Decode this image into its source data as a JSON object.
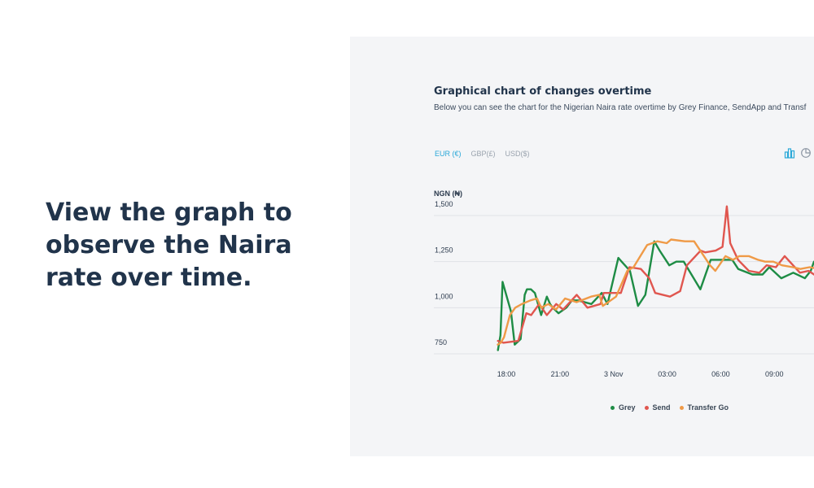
{
  "headline": "View the graph to observe the Naira rate over time.",
  "panel": {
    "title": "Graphical chart of changes overtime",
    "subtitle": "Below you can see the chart for the Nigerian Naira rate overtime by Grey Finance, SendApp and Transf",
    "currency_tabs": [
      {
        "label": "EUR (€)",
        "active": true
      },
      {
        "label": "GBP(£)",
        "active": false
      },
      {
        "label": "USD($)",
        "active": false
      }
    ],
    "view_toggle": [
      "bar-chart-icon",
      "pie-chart-icon"
    ]
  },
  "chart_data": {
    "type": "line",
    "title": "Graphical chart of changes overtime",
    "ylabel": "NGN (₦)",
    "ylim": [
      750,
      1500
    ],
    "yticks": [
      1500,
      1250,
      1000,
      750
    ],
    "ytick_labels": [
      "1,500",
      "1,250",
      "1,000",
      "750"
    ],
    "x_tick_labels": [
      "18:00",
      "21:00",
      "3 Nov",
      "03:00",
      "06:00",
      "09:00"
    ],
    "x_tick_hours": [
      0,
      3,
      6,
      9,
      12,
      15
    ],
    "x_range_hours": [
      -1.14,
      17.22
    ],
    "grid": true,
    "legend_position": "bottom-center",
    "series": [
      {
        "name": "Grey",
        "color": "#1e8c45",
        "x": [
          -0.47,
          -0.33,
          -0.21,
          0.26,
          0.47,
          0.8,
          1.03,
          1.15,
          1.38,
          1.6,
          1.95,
          2.27,
          2.45,
          2.6,
          2.92,
          3.36,
          3.67,
          4.01,
          4.76,
          5.34,
          5.66,
          6.27,
          6.92,
          7.37,
          7.78,
          8.28,
          8.58,
          9.12,
          9.51,
          9.93,
          10.86,
          11.44,
          12.64,
          12.98,
          13.77,
          14.34,
          14.72,
          15.39,
          16.06,
          16.71,
          17.04,
          17.22
        ],
        "y": [
          770,
          850,
          1140,
          980,
          800,
          830,
          1070,
          1100,
          1100,
          1080,
          960,
          1060,
          1020,
          1000,
          970,
          1000,
          1040,
          1040,
          1020,
          1080,
          1020,
          1270,
          1200,
          1010,
          1070,
          1360,
          1310,
          1230,
          1250,
          1250,
          1100,
          1260,
          1260,
          1210,
          1180,
          1180,
          1220,
          1160,
          1190,
          1160,
          1200,
          1250
        ]
      },
      {
        "name": "Send",
        "color": "#e0564f",
        "x": [
          -0.47,
          -0.17,
          0.67,
          1.12,
          1.39,
          1.84,
          2.27,
          2.79,
          3.18,
          3.94,
          4.54,
          5.27,
          5.45,
          6.41,
          6.89,
          7.53,
          8.0,
          8.33,
          9.16,
          9.73,
          10.11,
          10.88,
          11.13,
          11.72,
          12.1,
          12.34,
          12.53,
          12.97,
          13.57,
          14.16,
          14.57,
          15.09,
          15.58,
          16.43,
          16.92,
          17.22
        ],
        "y": [
          820,
          810,
          820,
          970,
          960,
          1020,
          960,
          1020,
          990,
          1070,
          1000,
          1020,
          1080,
          1080,
          1220,
          1210,
          1160,
          1080,
          1060,
          1090,
          1230,
          1310,
          1300,
          1310,
          1330,
          1550,
          1350,
          1260,
          1200,
          1190,
          1230,
          1220,
          1280,
          1190,
          1200,
          1180
        ]
      },
      {
        "name": "Transfer Go",
        "color": "#ef9a47",
        "x": [
          -0.48,
          -0.31,
          -0.13,
          0.2,
          0.5,
          0.87,
          1.35,
          1.72,
          1.95,
          2.35,
          2.78,
          3.29,
          3.93,
          4.74,
          5.2,
          5.4,
          6.14,
          6.77,
          7.12,
          7.88,
          8.45,
          8.98,
          9.22,
          9.99,
          10.51,
          11.4,
          11.7,
          12.27,
          12.69,
          13.04,
          13.57,
          14.08,
          14.48,
          14.94,
          15.43,
          16.03,
          16.46,
          16.98,
          17.22
        ],
        "y": [
          800,
          810,
          840,
          960,
          1000,
          1020,
          1040,
          1050,
          1000,
          1020,
          990,
          1050,
          1030,
          1060,
          1070,
          1010,
          1060,
          1200,
          1220,
          1340,
          1360,
          1350,
          1370,
          1360,
          1360,
          1230,
          1200,
          1280,
          1260,
          1280,
          1280,
          1260,
          1250,
          1250,
          1230,
          1220,
          1210,
          1220,
          1215
        ]
      }
    ]
  }
}
